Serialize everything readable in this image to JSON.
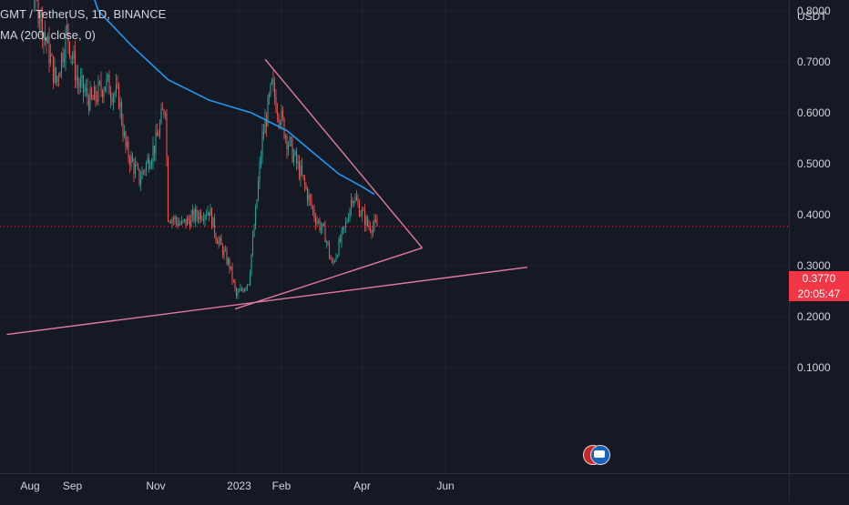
{
  "header": {
    "symbol": "GMT / TetherUS, 1D, BINANCE",
    "indicator": "MA (200, close, 0)"
  },
  "price_axis": {
    "unit": "USDT",
    "last_price": "0.3770",
    "countdown": "20:05:47"
  },
  "colors": {
    "background": "#151924",
    "up": "#26a69a",
    "down": "#ef5350",
    "ma": "#2196f3",
    "drawing": "#e5799f",
    "price_tag": "#f23645",
    "axis_text": "#d1d4dc"
  },
  "chart_data": {
    "type": "candlestick",
    "y_ticks": [
      "0.8000",
      "0.7000",
      "0.6000",
      "0.5000",
      "0.4000",
      "0.3000",
      "0.2000",
      "0.1000"
    ],
    "x_ticks": [
      "Aug",
      "Sep",
      "Nov",
      "2023",
      "Feb",
      "Apr",
      "Jun"
    ],
    "ylim": [
      0.0,
      0.88
    ],
    "grid": true,
    "ma_series": {
      "name": "MA (200, close, 0)",
      "points": [
        [
          "2022-08-25",
          0.98
        ],
        [
          "2022-09-10",
          0.88
        ],
        [
          "2022-09-20",
          0.8
        ],
        [
          "2022-10-15",
          0.73
        ],
        [
          "2022-11-10",
          0.665
        ],
        [
          "2022-12-10",
          0.625
        ],
        [
          "2023-01-10",
          0.6
        ],
        [
          "2023-02-05",
          0.565
        ],
        [
          "2023-02-25",
          0.52
        ],
        [
          "2023-03-15",
          0.48
        ],
        [
          "2023-04-01",
          0.455
        ],
        [
          "2023-04-10",
          0.44
        ]
      ]
    },
    "price_path": [
      [
        "2022-07-23",
        0.95
      ],
      [
        "2022-08-05",
        0.83
      ],
      [
        "2022-08-12",
        0.75
      ],
      [
        "2022-08-20",
        0.66
      ],
      [
        "2022-08-28",
        0.76
      ],
      [
        "2022-09-05",
        0.66
      ],
      [
        "2022-09-15",
        0.62
      ],
      [
        "2022-09-25",
        0.66
      ],
      [
        "2022-10-05",
        0.63
      ],
      [
        "2022-10-10",
        0.53
      ],
      [
        "2022-10-20",
        0.47
      ],
      [
        "2022-11-01",
        0.54
      ],
      [
        "2022-11-08",
        0.62
      ],
      [
        "2022-11-10",
        0.4
      ],
      [
        "2022-11-20",
        0.38
      ],
      [
        "2022-12-01",
        0.4
      ],
      [
        "2022-12-10",
        0.41
      ],
      [
        "2022-12-15",
        0.36
      ],
      [
        "2022-12-25",
        0.3
      ],
      [
        "2022-12-30",
        0.24
      ],
      [
        "2023-01-08",
        0.27
      ],
      [
        "2023-01-13",
        0.4
      ],
      [
        "2023-01-18",
        0.55
      ],
      [
        "2023-01-25",
        0.65
      ],
      [
        "2023-02-05",
        0.55
      ],
      [
        "2023-02-15",
        0.48
      ],
      [
        "2023-02-25",
        0.4
      ],
      [
        "2023-03-05",
        0.36
      ],
      [
        "2023-03-10",
        0.3
      ],
      [
        "2023-03-20",
        0.38
      ],
      [
        "2023-03-25",
        0.44
      ],
      [
        "2023-04-05",
        0.38
      ],
      [
        "2023-04-12",
        0.377
      ]
    ],
    "trendlines": [
      {
        "points": [
          [
            "2022-12-29",
            0.215
          ],
          [
            "2023-05-15",
            0.335
          ]
        ]
      },
      {
        "points": [
          [
            "2023-01-20",
            0.705
          ],
          [
            "2023-05-15",
            0.335
          ]
        ]
      },
      {
        "points": [
          [
            "2022-07-15",
            0.165
          ],
          [
            "2023-07-31",
            0.297
          ]
        ]
      }
    ],
    "last_price": 0.377
  }
}
